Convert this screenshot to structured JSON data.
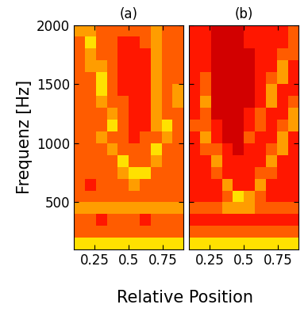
{
  "x_label": "Relative Position",
  "chart_data": [
    {
      "type": "heatmap",
      "title": "(a)",
      "y_label": "Frequenz [Hz]",
      "x": [
        0.14,
        0.22,
        0.3,
        0.38,
        0.46,
        0.54,
        0.62,
        0.7,
        0.78,
        0.86
      ],
      "y": [
        150,
        250,
        350,
        450,
        550,
        650,
        750,
        850,
        950,
        1050,
        1150,
        1250,
        1350,
        1450,
        1550,
        1650,
        1750,
        1850,
        1950
      ],
      "cells": [
        [
          7,
          7,
          7,
          7,
          7,
          7,
          7,
          7,
          7,
          7
        ],
        [
          5,
          5,
          5,
          5,
          5,
          5,
          5,
          5,
          5,
          5
        ],
        [
          5,
          5,
          4,
          5,
          5,
          5,
          4,
          5,
          5,
          5
        ],
        [
          6,
          6,
          6,
          6,
          6,
          6,
          6,
          6,
          6,
          6
        ],
        [
          5,
          5,
          5,
          5,
          5,
          5,
          5,
          5,
          5,
          5
        ],
        [
          5,
          4,
          5,
          5,
          5,
          6,
          5,
          5,
          5,
          5
        ],
        [
          5,
          5,
          5,
          5,
          6,
          7,
          7,
          5,
          5,
          5
        ],
        [
          5,
          5,
          5,
          5,
          7,
          5,
          5,
          6,
          5,
          5
        ],
        [
          5,
          5,
          5,
          6,
          5,
          5,
          5,
          7,
          5,
          5
        ],
        [
          5,
          5,
          6,
          5,
          5,
          4,
          5,
          5,
          6,
          5
        ],
        [
          5,
          5,
          5,
          7,
          5,
          4,
          4,
          6,
          7,
          5
        ],
        [
          5,
          5,
          5,
          6,
          5,
          4,
          4,
          6,
          5,
          5
        ],
        [
          5,
          5,
          6,
          5,
          5,
          4,
          4,
          6,
          5,
          6
        ],
        [
          5,
          5,
          7,
          5,
          4,
          4,
          4,
          6,
          5,
          6
        ],
        [
          5,
          5,
          7,
          5,
          4,
          4,
          4,
          6,
          5,
          5
        ],
        [
          5,
          6,
          6,
          5,
          4,
          4,
          4,
          6,
          5,
          5
        ],
        [
          5,
          6,
          5,
          5,
          4,
          4,
          4,
          6,
          5,
          5
        ],
        [
          5,
          7,
          5,
          5,
          4,
          4,
          5,
          6,
          5,
          5
        ],
        [
          6,
          6,
          5,
          5,
          5,
          5,
          5,
          6,
          5,
          5
        ]
      ],
      "color_range": [
        0,
        10
      ],
      "xlim": [
        0.1,
        0.9
      ],
      "xticks": [
        0.25,
        0.5,
        0.75
      ],
      "ylim": [
        100,
        2000
      ],
      "yticks": [
        500,
        1000,
        1500,
        2000
      ]
    },
    {
      "type": "heatmap",
      "title": "(b)",
      "tick_labels": "x",
      "x": [
        0.14,
        0.22,
        0.3,
        0.38,
        0.46,
        0.54,
        0.62,
        0.7,
        0.78,
        0.86
      ],
      "y": [
        150,
        250,
        350,
        450,
        550,
        650,
        750,
        850,
        950,
        1050,
        1150,
        1250,
        1350,
        1450,
        1550,
        1650,
        1750,
        1850,
        1950
      ],
      "cells": [
        [
          7,
          7,
          7,
          7,
          7,
          7,
          7,
          7,
          7,
          7
        ],
        [
          5,
          5,
          5,
          5,
          5,
          5,
          5,
          5,
          5,
          5
        ],
        [
          4,
          4,
          4,
          4,
          4,
          4,
          4,
          4,
          4,
          4
        ],
        [
          5,
          5,
          5,
          6,
          6,
          6,
          5,
          5,
          5,
          5
        ],
        [
          4,
          4,
          4,
          5,
          7,
          6,
          5,
          4,
          4,
          4
        ],
        [
          4,
          4,
          4,
          6,
          4,
          4,
          6,
          4,
          4,
          4
        ],
        [
          4,
          4,
          5,
          4,
          4,
          4,
          5,
          5,
          4,
          4
        ],
        [
          4,
          4,
          6,
          4,
          4,
          4,
          4,
          6,
          4,
          4
        ],
        [
          4,
          5,
          5,
          4,
          3,
          4,
          4,
          5,
          6,
          4
        ],
        [
          4,
          6,
          4,
          3,
          3,
          5,
          4,
          4,
          6,
          4
        ],
        [
          5,
          5,
          4,
          3,
          3,
          4,
          5,
          4,
          5,
          6
        ],
        [
          4,
          5,
          3,
          3,
          3,
          4,
          5,
          4,
          4,
          6
        ],
        [
          4,
          6,
          3,
          3,
          3,
          3,
          4,
          6,
          4,
          5
        ],
        [
          4,
          5,
          3,
          3,
          3,
          3,
          4,
          6,
          4,
          4
        ],
        [
          4,
          5,
          3,
          3,
          3,
          3,
          4,
          5,
          6,
          4
        ],
        [
          4,
          4,
          3,
          3,
          3,
          3,
          4,
          4,
          6,
          4
        ],
        [
          4,
          4,
          3,
          3,
          3,
          3,
          4,
          4,
          5,
          5
        ],
        [
          4,
          4,
          3,
          3,
          3,
          4,
          4,
          4,
          4,
          5
        ],
        [
          4,
          4,
          3,
          3,
          3,
          4,
          4,
          4,
          4,
          5
        ]
      ],
      "color_range": [
        0,
        10
      ],
      "xlim": [
        0.1,
        0.9
      ],
      "xticks": [
        0.25,
        0.5,
        0.75
      ],
      "ylim": [
        100,
        2000
      ],
      "yticks": [
        500,
        1000,
        1500,
        2000
      ]
    }
  ]
}
